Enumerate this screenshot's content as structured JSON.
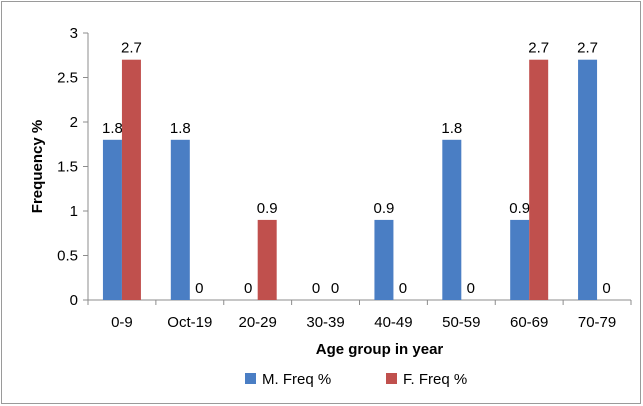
{
  "chart_data": {
    "type": "bar",
    "title": "",
    "xlabel": "Age group in year",
    "ylabel": "Frequency %",
    "categories": [
      "0-9",
      "Oct-19",
      "20-29",
      "30-39",
      "40-49",
      "50-59",
      "60-69",
      "70-79"
    ],
    "series": [
      {
        "name": "M. Freq %",
        "color": "#4a7ec4",
        "values": [
          1.8,
          1.8,
          0,
          0,
          0.9,
          1.8,
          0.9,
          2.7
        ]
      },
      {
        "name": "F. Freq %",
        "color": "#c0504d",
        "values": [
          2.7,
          0,
          0.9,
          0,
          0,
          0,
          2.7,
          0
        ]
      }
    ],
    "ylim": [
      0,
      3
    ],
    "yticks": [
      "0",
      "0.5",
      "1",
      "1.5",
      "2",
      "2.5",
      "3"
    ],
    "legend_position": "bottom",
    "grid": false
  }
}
